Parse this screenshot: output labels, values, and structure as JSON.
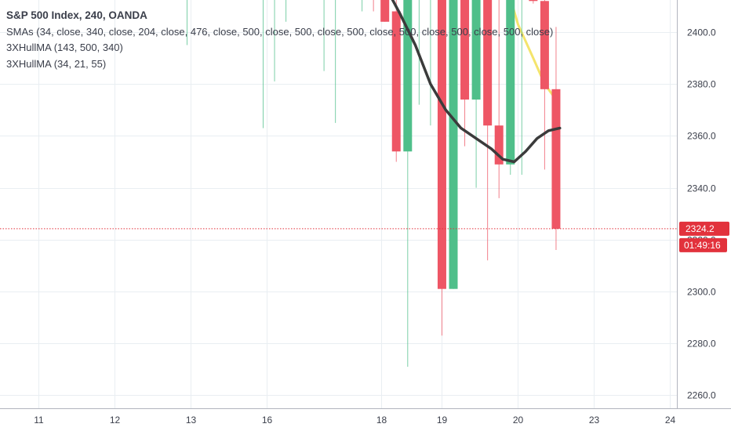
{
  "legend": {
    "title": "S&P 500 Index, 240, OANDA",
    "sma": "SMAs (34, close, 340, close, 204, close, 476, close, 500, close, 500, close, 500, close, 500, close, 500, close, 500, close)",
    "hull1": "3XHullMA (143, 500, 340)",
    "hull2": "3XHullMA (34, 21, 55)"
  },
  "colors": {
    "up": "#4fbf8a",
    "down": "#ee5665",
    "hull": "#3b3b3b",
    "sma_yellow": "#f4e46c",
    "price_line": "#e2323c",
    "grid": "#e9eef2",
    "axis_text": "#3a3e4a"
  },
  "chart_data": {
    "type": "candlestick",
    "symbol": "S&P 500 Index",
    "timeframe": "240",
    "source": "OANDA",
    "ylim": [
      2256,
      2418
    ],
    "yticks": [
      2260,
      2280,
      2300,
      2320,
      2340,
      2360,
      2380,
      2400
    ],
    "ytick_labels": [
      "2260.0",
      "2280.0",
      "2300.0",
      "2320.0",
      "2340.0",
      "2360.0",
      "2380.0",
      "2400.0"
    ],
    "xticks": [
      {
        "label": "11",
        "pos": 0.5
      },
      {
        "label": "12",
        "pos": 10.5
      },
      {
        "label": "13",
        "pos": 20.5
      },
      {
        "label": "16",
        "pos": 30.5
      },
      {
        "label": "18",
        "pos": 45.5
      },
      {
        "label": "19",
        "pos": 53.5
      },
      {
        "label": "20",
        "pos": 63.5
      },
      {
        "label": "23",
        "pos": 73.5
      },
      {
        "label": "24",
        "pos": 83.5
      }
    ],
    "last_price": 2324.2,
    "last_price_label": "2324.2",
    "countdown": "01:49:16",
    "candles": [
      {
        "i": 20,
        "o": 2420,
        "h": 2425,
        "l": 2395,
        "c": 2420
      },
      {
        "i": 30,
        "o": 2420,
        "h": 2425,
        "l": 2363,
        "c": 2420
      },
      {
        "i": 31.5,
        "o": 2420,
        "h": 2425,
        "l": 2381,
        "c": 2420
      },
      {
        "i": 33,
        "o": 2420,
        "h": 2425,
        "l": 2404,
        "c": 2420
      },
      {
        "i": 38,
        "o": 2420,
        "h": 2425,
        "l": 2385,
        "c": 2420
      },
      {
        "i": 39.5,
        "o": 2420,
        "h": 2425,
        "l": 2365,
        "c": 2420
      },
      {
        "i": 43,
        "o": 2420,
        "h": 2425,
        "l": 2408,
        "c": 2420
      },
      {
        "i": 44.5,
        "o": 2420,
        "h": 2425,
        "l": 2408,
        "c": 2414
      },
      {
        "i": 46,
        "o": 2413,
        "h": 2416,
        "l": 2404,
        "c": 2404
      },
      {
        "i": 47.5,
        "o": 2408,
        "h": 2420,
        "l": 2350,
        "c": 2354
      },
      {
        "i": 49,
        "o": 2354,
        "h": 2420,
        "l": 2271,
        "c": 2420
      },
      {
        "i": 50.5,
        "o": 2420,
        "h": 2425,
        "l": 2372,
        "c": 2420
      },
      {
        "i": 52,
        "o": 2420,
        "h": 2425,
        "l": 2364,
        "c": 2420
      },
      {
        "i": 53.5,
        "o": 2413,
        "h": 2418,
        "l": 2283,
        "c": 2301
      },
      {
        "i": 55,
        "o": 2301,
        "h": 2415,
        "l": 2301,
        "c": 2413
      },
      {
        "i": 56.5,
        "o": 2415,
        "h": 2420,
        "l": 2356,
        "c": 2374
      },
      {
        "i": 58,
        "o": 2374,
        "h": 2420,
        "l": 2340,
        "c": 2413
      },
      {
        "i": 59.5,
        "o": 2413,
        "h": 2418,
        "l": 2312,
        "c": 2364
      },
      {
        "i": 61,
        "o": 2364,
        "h": 2420,
        "l": 2336,
        "c": 2349
      },
      {
        "i": 62.5,
        "o": 2349,
        "h": 2420,
        "l": 2345,
        "c": 2420
      },
      {
        "i": 64,
        "o": 2420,
        "h": 2425,
        "l": 2345,
        "c": 2420
      },
      {
        "i": 65.5,
        "o": 2413,
        "h": 2417,
        "l": 2411,
        "c": 2412
      },
      {
        "i": 67,
        "o": 2412,
        "h": 2414,
        "l": 2347,
        "c": 2378
      },
      {
        "i": 68.5,
        "o": 2378,
        "h": 2402,
        "l": 2316,
        "c": 2324.2
      }
    ],
    "hull_line": [
      [
        44,
        2425
      ],
      [
        46,
        2418
      ],
      [
        48,
        2407
      ],
      [
        50,
        2395
      ],
      [
        52,
        2380
      ],
      [
        54,
        2370
      ],
      [
        56,
        2363
      ],
      [
        58,
        2359
      ],
      [
        60,
        2355
      ],
      [
        61.5,
        2351
      ],
      [
        63,
        2350
      ],
      [
        64.5,
        2354
      ],
      [
        66,
        2359
      ],
      [
        67.5,
        2362
      ],
      [
        69,
        2363
      ]
    ],
    "sma_line": [
      [
        62,
        2418
      ],
      [
        63.5,
        2403
      ],
      [
        65.5,
        2390
      ],
      [
        67,
        2380
      ],
      [
        68.5,
        2374
      ]
    ]
  }
}
